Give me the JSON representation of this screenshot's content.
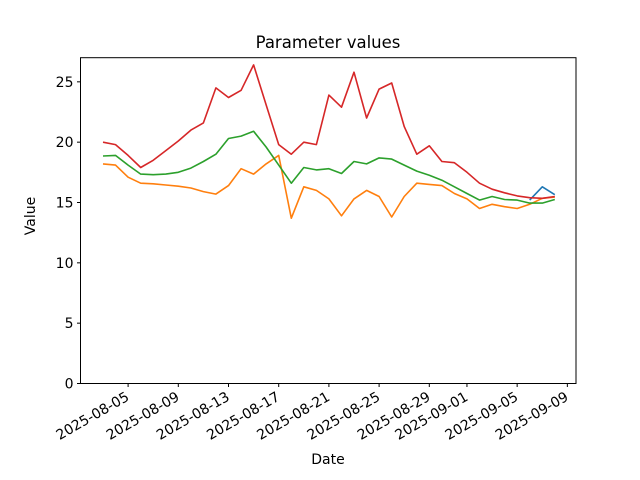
{
  "chart_data": {
    "type": "line",
    "title": "Parameter values",
    "xlabel": "Date",
    "ylabel": "Value",
    "grid": false,
    "legend": "none",
    "background": "#ffffff",
    "axis_color": "#000000",
    "ylim": [
      0,
      27
    ],
    "y_ticks": [
      0,
      5,
      10,
      15,
      20,
      25
    ],
    "x_dates": [
      "2025-08-03",
      "2025-08-04",
      "2025-08-05",
      "2025-08-06",
      "2025-08-07",
      "2025-08-08",
      "2025-08-09",
      "2025-08-10",
      "2025-08-11",
      "2025-08-12",
      "2025-08-13",
      "2025-08-14",
      "2025-08-15",
      "2025-08-16",
      "2025-08-17",
      "2025-08-18",
      "2025-08-19",
      "2025-08-20",
      "2025-08-21",
      "2025-08-22",
      "2025-08-23",
      "2025-08-24",
      "2025-08-25",
      "2025-08-26",
      "2025-08-27",
      "2025-08-28",
      "2025-08-29",
      "2025-08-30",
      "2025-08-31",
      "2025-09-01",
      "2025-09-02",
      "2025-09-03",
      "2025-09-04",
      "2025-09-05",
      "2025-09-06",
      "2025-09-07",
      "2025-09-08"
    ],
    "x_tick_labels": [
      {
        "index": 2,
        "label": "2025-08-05"
      },
      {
        "index": 6,
        "label": "2025-08-09"
      },
      {
        "index": 10,
        "label": "2025-08-13"
      },
      {
        "index": 14,
        "label": "2025-08-17"
      },
      {
        "index": 18,
        "label": "2025-08-21"
      },
      {
        "index": 22,
        "label": "2025-08-25"
      },
      {
        "index": 26,
        "label": "2025-08-29"
      },
      {
        "index": 29,
        "label": "2025-09-01"
      },
      {
        "index": 33,
        "label": "2025-09-05"
      },
      {
        "index": 37,
        "label": "2025-09-09"
      }
    ],
    "series": [
      {
        "name": "blue",
        "color": "#1f77b4",
        "start_index": 34,
        "values": [
          15.2,
          16.3,
          15.65
        ]
      },
      {
        "name": "orange",
        "color": "#ff7f0e",
        "start_index": 0,
        "values": [
          18.2,
          18.1,
          17.1,
          16.6,
          16.55,
          16.45,
          16.35,
          16.2,
          15.9,
          15.7,
          16.4,
          17.8,
          17.35,
          18.2,
          18.9,
          13.7,
          16.3,
          16.0,
          15.3,
          13.9,
          15.3,
          16.0,
          15.5,
          13.8,
          15.5,
          16.6,
          16.5,
          16.4,
          15.75,
          15.3,
          14.5,
          14.85,
          14.65,
          14.5,
          14.85,
          15.35,
          15.45
        ]
      },
      {
        "name": "green",
        "color": "#2ca02c",
        "start_index": 0,
        "values": [
          18.85,
          18.9,
          18.1,
          17.35,
          17.3,
          17.35,
          17.5,
          17.85,
          18.4,
          19.0,
          20.3,
          20.5,
          20.9,
          19.6,
          18.1,
          16.6,
          17.9,
          17.7,
          17.8,
          17.4,
          18.4,
          18.2,
          18.7,
          18.6,
          18.1,
          17.6,
          17.25,
          16.85,
          16.3,
          15.75,
          15.2,
          15.5,
          15.25,
          15.2,
          14.95,
          14.95,
          15.25
        ]
      },
      {
        "name": "red",
        "color": "#d62728",
        "start_index": 0,
        "values": [
          20.0,
          19.8,
          18.9,
          17.9,
          18.5,
          19.3,
          20.1,
          21.0,
          21.6,
          24.5,
          23.7,
          24.3,
          26.4,
          23.1,
          19.8,
          19.0,
          20.0,
          19.8,
          23.9,
          22.9,
          25.8,
          22.0,
          24.4,
          24.9,
          21.3,
          19.0,
          19.7,
          18.4,
          18.3,
          17.5,
          16.6,
          16.1,
          15.8,
          15.55,
          15.4,
          15.35,
          15.5
        ]
      }
    ]
  }
}
